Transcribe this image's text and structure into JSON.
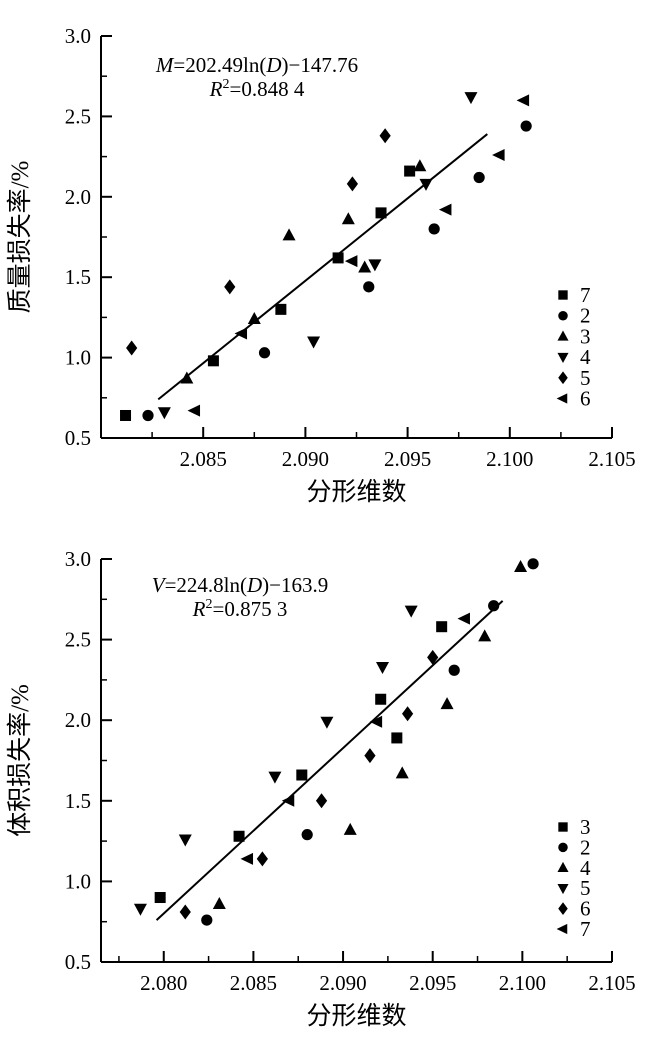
{
  "figure": {
    "background": "#ffffff",
    "ink_color": "#000000"
  },
  "chart_data": [
    {
      "type": "scatter",
      "name": "mass-loss-chart",
      "equation_text": "M=202.49ln(D)−147.76",
      "equation_line1": {
        "lhs": "M",
        "mid": "=202.49ln(",
        "arg": "D",
        "tail": ")−147.76"
      },
      "equation_line2": {
        "base": "R",
        "sup": "2",
        "rest": "=0.848 4"
      },
      "xlabel": "分形维数",
      "ylabel": "质量损失率/%",
      "xlim": [
        2.08,
        2.105
      ],
      "ylim": [
        0.5,
        3.0
      ],
      "x_major_ticks": [
        2.085,
        2.09,
        2.095,
        2.1,
        2.105
      ],
      "x_tick_labels": [
        "2.085",
        "2.090",
        "2.095",
        "2.100",
        "2.105"
      ],
      "x_minor_ticks": [
        2.0825,
        2.0875,
        2.0925,
        2.0975,
        2.1025
      ],
      "y_major_ticks": [
        0.5,
        1.0,
        1.5,
        2.0,
        2.5,
        3.0
      ],
      "y_tick_labels": [
        "0.5",
        "1.0",
        "1.5",
        "2.0",
        "2.5",
        "3.0"
      ],
      "y_minor_ticks": [
        0.75,
        1.25,
        1.75,
        2.25,
        2.75
      ],
      "fit_line": {
        "x1": 2.0828,
        "y1": 0.74,
        "x2": 2.0989,
        "y2": 2.39
      },
      "series": [
        {
          "label": "7",
          "marker": "square",
          "points": [
            [
              2.0812,
              0.64
            ],
            [
              2.0855,
              0.98
            ],
            [
              2.0888,
              1.3
            ],
            [
              2.0916,
              1.62
            ],
            [
              2.0937,
              1.9
            ],
            [
              2.0951,
              2.16
            ]
          ]
        },
        {
          "label": "2",
          "marker": "circle",
          "points": [
            [
              2.0823,
              0.64
            ],
            [
              2.088,
              1.03
            ],
            [
              2.0931,
              1.44
            ],
            [
              2.0963,
              1.8
            ],
            [
              2.0985,
              2.12
            ],
            [
              2.1008,
              2.44
            ]
          ]
        },
        {
          "label": "3",
          "marker": "triangle-up",
          "points": [
            [
              2.0842,
              0.87
            ],
            [
              2.0875,
              1.24
            ],
            [
              2.0892,
              1.76
            ],
            [
              2.0921,
              1.86
            ],
            [
              2.0929,
              1.56
            ],
            [
              2.0956,
              2.19
            ]
          ]
        },
        {
          "label": "4",
          "marker": "triangle-down",
          "points": [
            [
              2.0831,
              0.66
            ],
            [
              2.0904,
              1.1
            ],
            [
              2.0934,
              1.58
            ],
            [
              2.0959,
              2.08
            ],
            [
              2.0981,
              2.62
            ]
          ]
        },
        {
          "label": "5",
          "marker": "diamond",
          "points": [
            [
              2.0815,
              1.06
            ],
            [
              2.0863,
              1.44
            ],
            [
              2.0923,
              2.08
            ],
            [
              2.0939,
              2.38
            ]
          ]
        },
        {
          "label": "6",
          "marker": "triangle-left",
          "points": [
            [
              2.0846,
              0.67
            ],
            [
              2.0869,
              1.15
            ],
            [
              2.0923,
              1.6
            ],
            [
              2.0969,
              1.92
            ],
            [
              2.0995,
              2.26
            ],
            [
              2.1007,
              2.6
            ]
          ]
        }
      ]
    },
    {
      "type": "scatter",
      "name": "volume-loss-chart",
      "equation_text": "V=224.8ln(D)−163.9",
      "equation_line1": {
        "lhs": "V",
        "mid": "=224.8ln(",
        "arg": "D",
        "tail": ")−163.9"
      },
      "equation_line2": {
        "base": "R",
        "sup": "2",
        "rest": "=0.875 3"
      },
      "xlabel": "分形维数",
      "ylabel": "体积损失率/%",
      "xlim": [
        2.0765,
        2.105
      ],
      "ylim": [
        0.5,
        3.0
      ],
      "x_major_ticks": [
        2.08,
        2.085,
        2.09,
        2.095,
        2.1,
        2.105
      ],
      "x_tick_labels": [
        "2.080",
        "2.085",
        "2.090",
        "2.095",
        "2.100",
        "2.105"
      ],
      "x_minor_ticks": [
        2.0775,
        2.0825,
        2.0875,
        2.0925,
        2.0975,
        2.1025
      ],
      "y_major_ticks": [
        0.5,
        1.0,
        1.5,
        2.0,
        2.5,
        3.0
      ],
      "y_tick_labels": [
        "0.5",
        "1.0",
        "1.5",
        "2.0",
        "2.5",
        "3.0"
      ],
      "y_minor_ticks": [
        0.75,
        1.25,
        1.75,
        2.25,
        2.75
      ],
      "fit_line": {
        "x1": 2.0796,
        "y1": 0.76,
        "x2": 2.0989,
        "y2": 2.74
      },
      "series": [
        {
          "label": "3",
          "marker": "square",
          "points": [
            [
              2.0798,
              0.9
            ],
            [
              2.0842,
              1.28
            ],
            [
              2.0877,
              1.66
            ],
            [
              2.0921,
              2.13
            ],
            [
              2.093,
              1.89
            ],
            [
              2.0955,
              2.58
            ]
          ]
        },
        {
          "label": "2",
          "marker": "circle",
          "points": [
            [
              2.0824,
              0.76
            ],
            [
              2.088,
              1.29
            ],
            [
              2.0962,
              2.31
            ],
            [
              2.0984,
              2.71
            ],
            [
              2.1006,
              2.97
            ]
          ]
        },
        {
          "label": "4",
          "marker": "triangle-up",
          "points": [
            [
              2.0831,
              0.86
            ],
            [
              2.0904,
              1.32
            ],
            [
              2.0933,
              1.67
            ],
            [
              2.0958,
              2.1
            ],
            [
              2.0979,
              2.52
            ],
            [
              2.0999,
              2.95
            ]
          ]
        },
        {
          "label": "5",
          "marker": "triangle-down",
          "points": [
            [
              2.0787,
              0.83
            ],
            [
              2.0812,
              1.26
            ],
            [
              2.0862,
              1.65
            ],
            [
              2.0891,
              1.99
            ],
            [
              2.0922,
              2.33
            ],
            [
              2.0938,
              2.68
            ]
          ]
        },
        {
          "label": "6",
          "marker": "diamond",
          "points": [
            [
              2.0812,
              0.81
            ],
            [
              2.0855,
              1.14
            ],
            [
              2.0888,
              1.5
            ],
            [
              2.0915,
              1.78
            ],
            [
              2.0936,
              2.04
            ],
            [
              2.095,
              2.39
            ]
          ]
        },
        {
          "label": "7",
          "marker": "triangle-left",
          "points": [
            [
              2.0847,
              1.14
            ],
            [
              2.087,
              1.5
            ],
            [
              2.0919,
              1.99
            ],
            [
              2.0968,
              2.63
            ]
          ]
        }
      ]
    }
  ]
}
